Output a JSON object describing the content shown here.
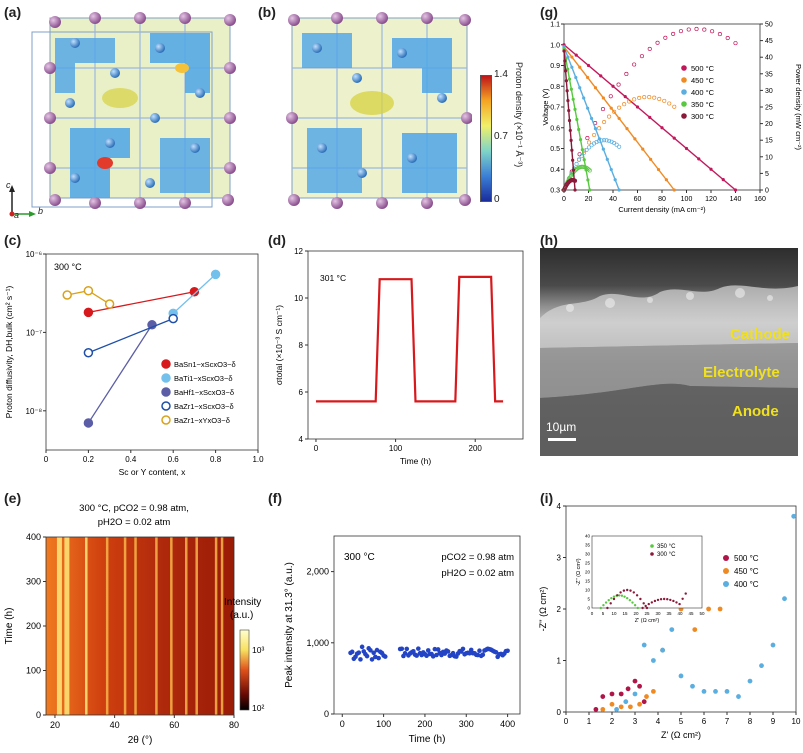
{
  "panels": {
    "a": "(a)",
    "b": "(b)",
    "c": "(c)",
    "d": "(d)",
    "e": "(e)",
    "f": "(f)",
    "g": "(g)",
    "h": "(h)",
    "i": "(i)"
  },
  "crystal": {
    "colorbar": {
      "max": "1.4",
      "mid": "0.7",
      "min": "0"
    },
    "colorbar_title": "Proton density (×10⁻¹ Å⁻³)",
    "axes": {
      "c": "c",
      "a": "a",
      "b": "b"
    }
  },
  "sem": {
    "cathode": "Cathode",
    "electrolyte": "Electrolyte",
    "anode": "Anode",
    "scale": "10µm"
  },
  "chart_data": [
    {
      "id": "g",
      "type": "line",
      "xlabel": "Current density (mA cm⁻²)",
      "ylabel_left": "Voltage (V)",
      "ylabel_right": "Power density (mW cm⁻²)",
      "xlim": [
        0,
        160
      ],
      "ylim_left": [
        0.3,
        1.1
      ],
      "ylim_right": [
        0,
        50
      ],
      "xticks": [
        "0",
        "20",
        "40",
        "60",
        "80",
        "100",
        "120",
        "140",
        "160"
      ],
      "yticks_left": [
        "0.3",
        "0.4",
        "0.5",
        "0.6",
        "0.7",
        "0.8",
        "0.9",
        "1.0",
        "1.1"
      ],
      "yticks_right": [
        "0",
        "5",
        "10",
        "15",
        "20",
        "25",
        "30",
        "35",
        "40",
        "45",
        "50"
      ],
      "series": [
        {
          "name": "500 °C",
          "color": "#c2185b",
          "v0": 1.0,
          "imax": 140,
          "pmax": 48.5,
          "ipeak": 108
        },
        {
          "name": "450 °C",
          "color": "#f08a24",
          "v0": 0.99,
          "imax": 90,
          "pmax": 28,
          "ipeak": 68
        },
        {
          "name": "400 °C",
          "color": "#5aaee0",
          "v0": 0.99,
          "imax": 45,
          "pmax": 15,
          "ipeak": 33
        },
        {
          "name": "350 °C",
          "color": "#58c840",
          "v0": 0.98,
          "imax": 21,
          "pmax": 7,
          "ipeak": 15
        },
        {
          "name": "300 °C",
          "color": "#8b1a3a",
          "v0": 0.97,
          "imax": 9,
          "pmax": 3,
          "ipeak": 7
        }
      ]
    },
    {
      "id": "c",
      "type": "scatter",
      "annotation": "300 °C",
      "xlabel": "Sc or Y content, x",
      "ylabel": "Proton diffusivity, DH,bulk (cm² s⁻¹)",
      "xlim": [
        0,
        1.0
      ],
      "ylim_log": [
        -8.5,
        -6
      ],
      "xticks": [
        "0",
        "0.2",
        "0.4",
        "0.6",
        "0.8",
        "1.0"
      ],
      "yticks": [
        "10⁻⁸",
        "10⁻⁷",
        "10⁻⁶"
      ],
      "series": [
        {
          "name": "BaSn1−xScxO3−δ",
          "color": "#d7191c",
          "filled": true,
          "x": [
            0.2,
            0.7
          ],
          "y": [
            1.8e-07,
            3.3e-07
          ]
        },
        {
          "name": "BaTi1−xScxO3−δ",
          "color": "#74c0ec",
          "filled": true,
          "x": [
            0.6,
            0.8
          ],
          "y": [
            1.75e-07,
            5.5e-07
          ]
        },
        {
          "name": "BaHf1−xScxO3−δ",
          "color": "#5b5ea6",
          "filled": true,
          "x": [
            0.2,
            0.5
          ],
          "y": [
            7e-09,
            1.25e-07
          ]
        },
        {
          "name": "BaZr1−xScxO3−δ",
          "color": "#1f4fa8",
          "filled": false,
          "x": [
            0.2,
            0.6
          ],
          "y": [
            5.5e-08,
            1.5e-07
          ]
        },
        {
          "name": "BaZr1−xYxO3−δ",
          "color": "#d9a21b",
          "filled": false,
          "x": [
            0.1,
            0.2,
            0.3
          ],
          "y": [
            3e-07,
            3.4e-07,
            2.3e-07
          ]
        }
      ]
    },
    {
      "id": "d",
      "type": "line",
      "annotation": "301 °C",
      "xlabel": "Time (h)",
      "ylabel": "σtotal (×10⁻³ S cm⁻¹)",
      "xlim": [
        -10,
        260
      ],
      "ylim": [
        4,
        12
      ],
      "xticks": [
        "0",
        "100",
        "200"
      ],
      "yticks": [
        "4",
        "6",
        "8",
        "10",
        "12"
      ],
      "color": "#d7191c",
      "x": [
        0,
        75,
        80,
        120,
        125,
        175,
        180,
        220,
        225,
        235
      ],
      "y": [
        5.6,
        5.6,
        10.8,
        10.8,
        5.6,
        5.6,
        10.9,
        10.9,
        5.6,
        5.6
      ]
    },
    {
      "id": "e",
      "type": "heatmap",
      "title_line1": "300 °C, pCO2 = 0.98 atm,",
      "title_line2": "pH2O = 0.02 atm",
      "xlabel": "2θ (°)",
      "ylabel": "Time (h)",
      "xlim": [
        17,
        80
      ],
      "ylim": [
        0,
        400
      ],
      "xticks": [
        "20",
        "40",
        "60",
        "80"
      ],
      "yticks": [
        "0",
        "100",
        "200",
        "300",
        "400"
      ],
      "colorbar_label": "Intensity (a.u.)",
      "colorbar_ticks": [
        "10³",
        "10²"
      ],
      "peaks": [
        21.5,
        24,
        30.5,
        37.5,
        43.5,
        47,
        54,
        59,
        64,
        67.5,
        74,
        76
      ]
    },
    {
      "id": "f",
      "type": "scatter",
      "annotation": "300 °C",
      "condition1": "pCO2 = 0.98 atm",
      "condition2": "pH2O = 0.02 atm",
      "xlabel": "Time (h)",
      "ylabel": "Peak intensity at 31.3° (a.u.)",
      "xlim": [
        -20,
        430
      ],
      "ylim": [
        0,
        2500
      ],
      "xticks": [
        "0",
        "100",
        "200",
        "300",
        "400"
      ],
      "yticks": [
        "0",
        "1,000",
        "2,000"
      ],
      "color": "#2344c4",
      "x_start": 20,
      "x_end": 400,
      "gap": [
        105,
        140
      ],
      "mean": 860
    },
    {
      "id": "i",
      "type": "scatter",
      "xlabel": "Z' (Ω cm²)",
      "ylabel": "-Z'' (Ω cm²)",
      "xlim": [
        0,
        10
      ],
      "ylim": [
        0,
        4
      ],
      "xticks": [
        "0",
        "1",
        "2",
        "3",
        "4",
        "5",
        "6",
        "7",
        "8",
        "9",
        "10"
      ],
      "yticks": [
        "0",
        "1",
        "2",
        "3",
        "4"
      ],
      "series": [
        {
          "name": "500 °C",
          "color": "#b0154a",
          "x": [
            1.3,
            1.6,
            2.0,
            2.4,
            2.7,
            3.0,
            3.2,
            3.4
          ],
          "y": [
            0.05,
            0.3,
            0.35,
            0.35,
            0.45,
            0.6,
            0.5,
            0.2
          ]
        },
        {
          "name": "450 °C",
          "color": "#ef8a23",
          "x": [
            1.6,
            2.0,
            2.4,
            2.8,
            3.2,
            3.5,
            3.8,
            4.2,
            5.0,
            5.6,
            6.2,
            6.7
          ],
          "y": [
            0.05,
            0.15,
            0.1,
            0.1,
            0.15,
            0.3,
            0.4,
            1.2,
            2.0,
            1.6,
            2.0,
            2.0
          ]
        },
        {
          "name": "400 °C",
          "color": "#5aaee0",
          "x": [
            2.2,
            2.6,
            3.0,
            3.4,
            3.8,
            4.2,
            4.6,
            5.0,
            5.5,
            6.0,
            6.5,
            7.0,
            7.5,
            8.0,
            8.5,
            9.0,
            9.5,
            9.9
          ],
          "y": [
            0.05,
            0.2,
            0.35,
            1.3,
            1.0,
            1.2,
            1.6,
            0.7,
            0.5,
            0.4,
            0.4,
            0.4,
            0.3,
            0.6,
            0.9,
            1.3,
            2.2,
            3.8
          ]
        }
      ],
      "inset": {
        "xlabel": "Z' (Ω cm²)",
        "ylabel": "-Z'' (Ω cm²)",
        "xlim": [
          0,
          50
        ],
        "ylim": [
          0,
          40
        ],
        "xticks": [
          "0",
          "5",
          "10",
          "15",
          "20",
          "25",
          "30",
          "35",
          "40",
          "45",
          "50"
        ],
        "yticks": [
          "0",
          "5",
          "10",
          "15",
          "20",
          "25",
          "30",
          "35",
          "40"
        ],
        "series": [
          {
            "name": "350 °C",
            "color": "#58c840"
          },
          {
            "name": "300 °C",
            "color": "#8b1a3a"
          }
        ]
      }
    }
  ]
}
